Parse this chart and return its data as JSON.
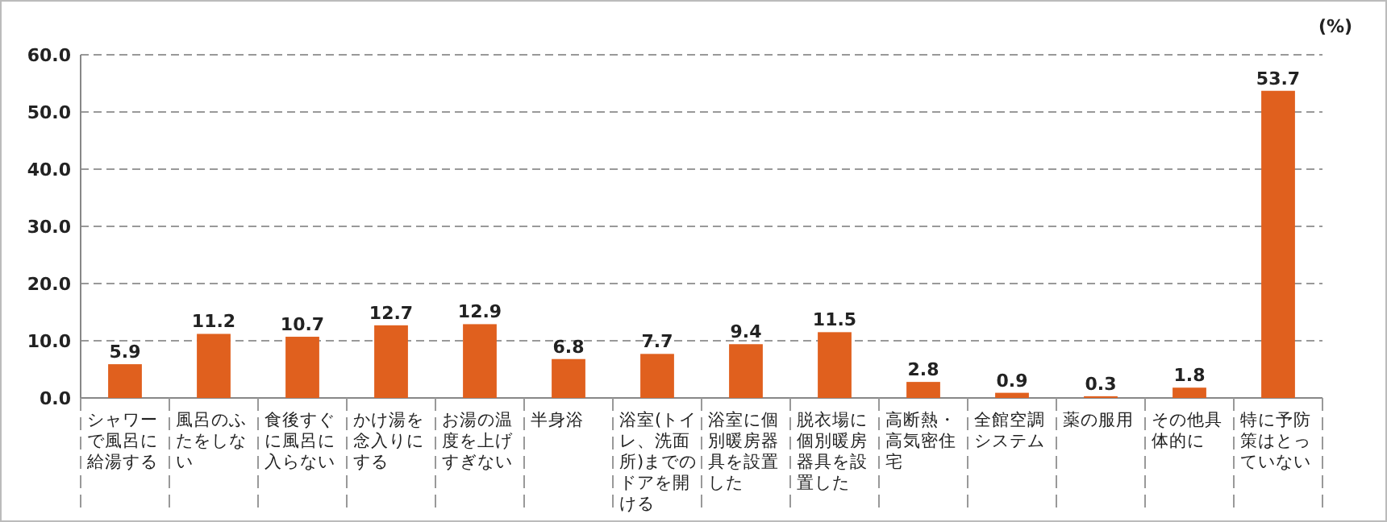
{
  "chart_data": {
    "type": "bar",
    "ylabel": "(%)",
    "categories": [
      "シャワーで風呂に給湯する",
      "風呂のふたをしない",
      "食後すぐに風呂に入らない",
      "かけ湯を念入りにする",
      "お湯の温度を上げすぎない",
      "半身浴",
      "浴室(トイレ、洗面所)までのドアを開ける",
      "浴室に個別暖房器具を設置した",
      "脱衣場に個別暖房器具を設置した",
      "高断熱・高気密住宅",
      "全館空調システム",
      "薬の服用",
      "その他具体的に",
      "特に予防策はとっていない"
    ],
    "values": [
      5.9,
      11.2,
      10.7,
      12.7,
      12.9,
      6.8,
      7.7,
      9.4,
      11.5,
      2.8,
      0.9,
      0.3,
      1.8,
      53.7
    ],
    "color": "#e0601e",
    "ylim": [
      0,
      60
    ],
    "yticks": [
      {
        "value": 0,
        "label": "0.0"
      },
      {
        "value": 10,
        "label": "10.0"
      },
      {
        "value": 20,
        "label": "20.0"
      },
      {
        "value": 30,
        "label": "30.0"
      },
      {
        "value": 40,
        "label": "40.0"
      },
      {
        "value": 50,
        "label": "50.0"
      },
      {
        "value": 60,
        "label": "60.0"
      }
    ],
    "grid": "y",
    "data_labels": true
  }
}
